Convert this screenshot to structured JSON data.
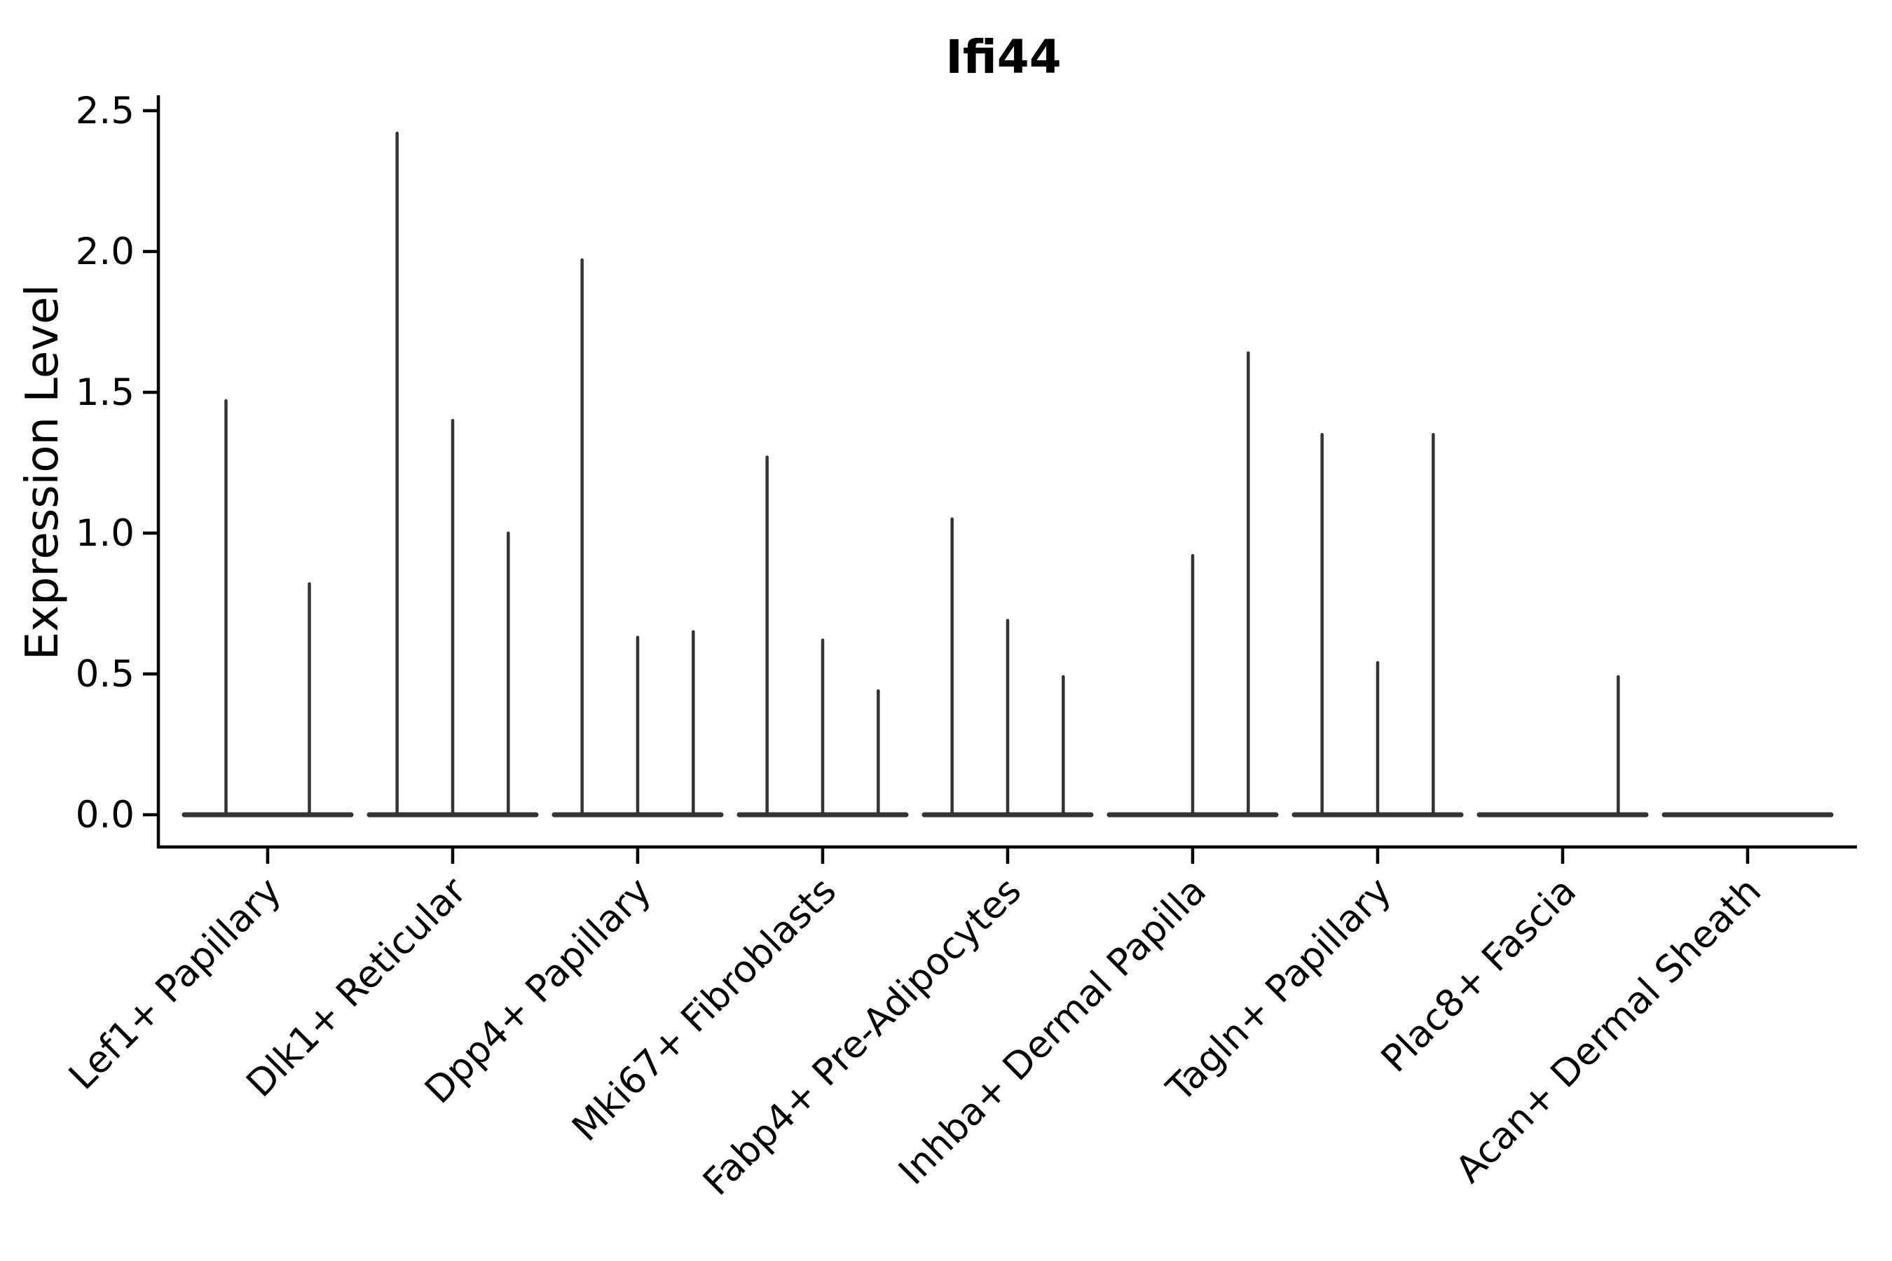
{
  "title": "Ifi44",
  "y_axis": {
    "label": "Expression Level",
    "tick_labels": [
      "0.0",
      "0.5",
      "1.0",
      "1.5",
      "2.0",
      "2.5"
    ]
  },
  "chart_data": {
    "type": "violin",
    "title": "Ifi44",
    "xlabel": "",
    "ylabel": "Expression Level",
    "ylim": [
      0,
      2.5
    ],
    "yticks": [
      0.0,
      0.5,
      1.0,
      1.5,
      2.0,
      2.5
    ],
    "grid": false,
    "legend": null,
    "xtick_rotation": 45,
    "categories": [
      "Lef1+ Papillary",
      "Dlk1+ Reticular",
      "Dpp4+ Papillary",
      "Mki67+ Fibroblasts",
      "Fabp4+ Pre-Adipocytes",
      "Inhba+ Dermal Papilla",
      "Tagln+ Papillary",
      "Plac8+ Fascia",
      "Acan+ Dermal Sheath"
    ],
    "series": [
      {
        "category": "Lef1+ Papillary",
        "violin_max_values": [
          1.47,
          0.82
        ]
      },
      {
        "category": "Dlk1+ Reticular",
        "violin_max_values": [
          2.42,
          1.4,
          1.0
        ]
      },
      {
        "category": "Dpp4+ Papillary",
        "violin_max_values": [
          1.97,
          0.63,
          0.65
        ]
      },
      {
        "category": "Mki67+ Fibroblasts",
        "violin_max_values": [
          1.27,
          0.62,
          0.44
        ]
      },
      {
        "category": "Fabp4+ Pre-Adipocytes",
        "violin_max_values": [
          1.05,
          0.69,
          0.49
        ]
      },
      {
        "category": "Inhba+ Dermal Papilla",
        "violin_max_values": [
          0,
          0.92,
          1.64
        ]
      },
      {
        "category": "Tagln+ Papillary",
        "violin_max_values": [
          1.35,
          0.54,
          1.35
        ]
      },
      {
        "category": "Plac8+ Fascia",
        "violin_max_values": [
          0,
          0,
          0.49
        ]
      },
      {
        "category": "Acan+ Dermal Sheath",
        "violin_max_values": [
          0,
          0,
          0
        ]
      }
    ],
    "colors": {
      "violin_line": "#333333",
      "spine": "#000000",
      "text": "#000000",
      "background": "#ffffff"
    }
  }
}
